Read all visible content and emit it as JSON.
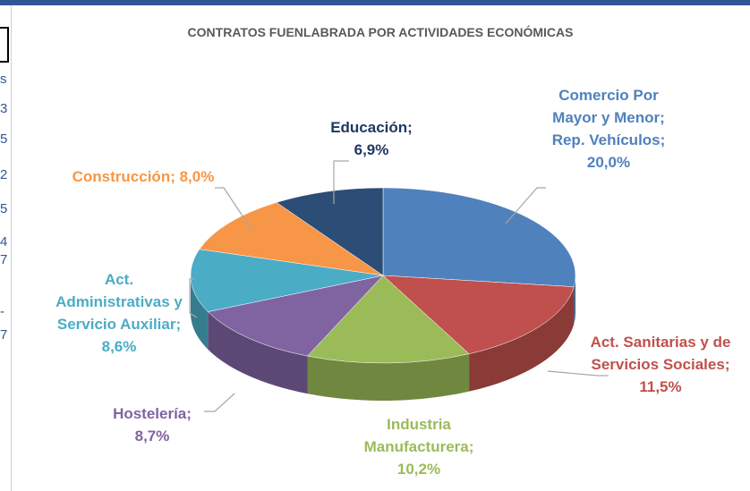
{
  "chart_data": {
    "type": "pie",
    "title": "CONTRATOS FUENLABRADA POR ACTIVIDADES ECONÓMICAS",
    "values": [
      20.0,
      11.5,
      10.2,
      8.7,
      8.6,
      8.0,
      6.9
    ],
    "value_labels": [
      "Comercio Por Mayor y Menor; Rep. Vehículos; 20,0%",
      "Act. Sanitarias y de Servicios Sociales; 11,5%",
      "Industria Manufacturera; 10,2%",
      "Hostelería; 8,7%",
      "Act. Administrativas y Servicio Auxiliar; 8,6%",
      "Construcción; 8,0%",
      "Educación; 6,9%"
    ],
    "colors": [
      "#4f81bd",
      "#c0504d",
      "#9bbb59",
      "#8064a2",
      "#4bacc6",
      "#f79646",
      "#2c4d75"
    ],
    "label_colors": [
      "#4f81bd",
      "#c0504d",
      "#9bbb59",
      "#8064a2",
      "#4bacc6",
      "#f79646",
      "#1f3864"
    ],
    "cut_off_column": [
      "s",
      "3",
      "5",
      "2",
      "5",
      "4",
      "7",
      "-",
      "7"
    ]
  }
}
